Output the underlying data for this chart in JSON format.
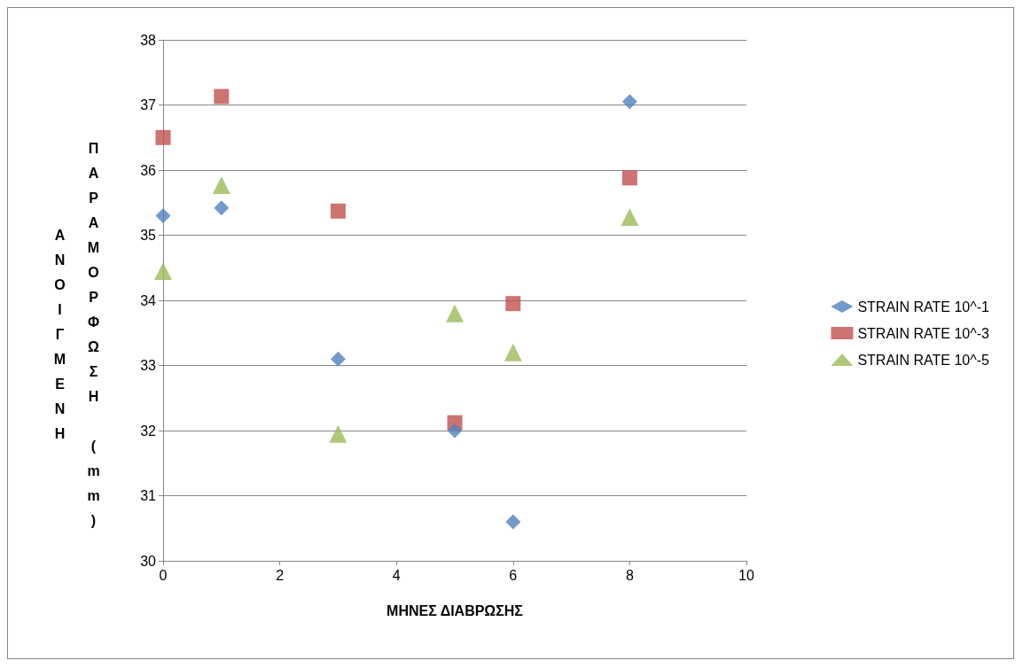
{
  "chart_data": {
    "type": "scatter",
    "xlabel": "ΜΗΝΕΣ ΔΙΑΒΡΩΣΗΣ",
    "ylabel": "ΑΝΟΙΓΜΕΝΗ ΠΑΡΑΜΟΡΦΩΣΗ (mm)",
    "xlim": [
      0,
      10
    ],
    "xticks": [
      0,
      2,
      4,
      6,
      8,
      10
    ],
    "ylim": [
      30,
      38
    ],
    "yticks": [
      30,
      31,
      32,
      33,
      34,
      35,
      36,
      37,
      38
    ],
    "grid": "y",
    "legend": "right",
    "series": [
      {
        "name": "STRAIN RATE 10^-1",
        "color": "#4f81bd",
        "marker": "diamond",
        "x": [
          0,
          1,
          3,
          5,
          6,
          8
        ],
        "values": [
          35.3,
          35.42,
          33.1,
          32.0,
          30.6,
          37.05
        ]
      },
      {
        "name": "STRAIN RATE 10^-3",
        "color": "#c0504d",
        "marker": "square",
        "x": [
          0,
          1,
          3,
          5,
          6,
          8
        ],
        "values": [
          36.5,
          37.13,
          35.37,
          32.12,
          33.95,
          35.88
        ]
      },
      {
        "name": "STRAIN RATE 10^-5",
        "color": "#9bbb59",
        "marker": "triangle",
        "x": [
          0,
          1,
          3,
          5,
          6,
          8
        ],
        "values": [
          34.45,
          35.77,
          31.95,
          33.8,
          33.2,
          35.28
        ]
      }
    ]
  }
}
